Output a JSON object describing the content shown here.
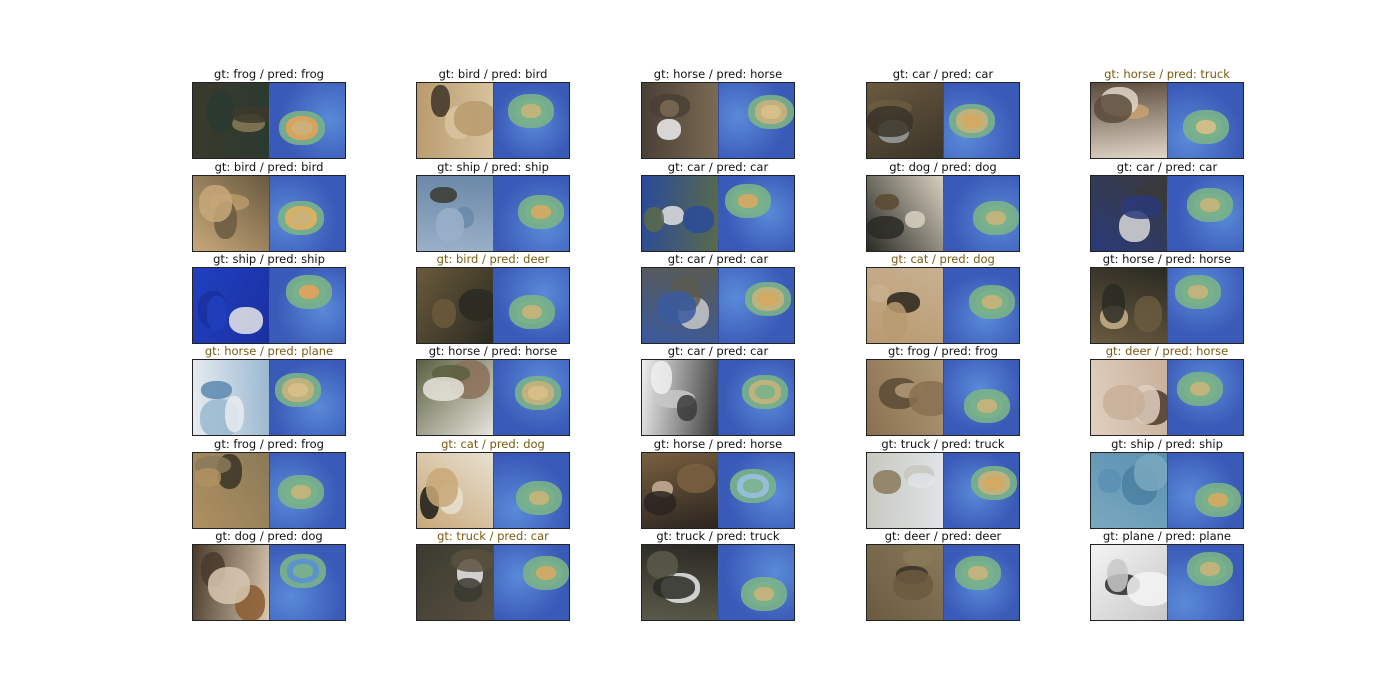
{
  "figure": {
    "cells": [
      {
        "gt": "frog",
        "pred": "frog",
        "caption": "gt: frog / pred: frog",
        "correct": true,
        "img_colors": [
          "#3b3a2c",
          "#8a7a58",
          "#2a3a30"
        ],
        "cam_hot": [
          "#c9b27a",
          "#e4a25a"
        ]
      },
      {
        "gt": "bird",
        "pred": "bird",
        "caption": "gt: bird / pred: bird",
        "correct": true,
        "img_colors": [
          "#b99a6d",
          "#3d3428",
          "#d8c4a0"
        ],
        "cam_hot": [
          "#c9b27a",
          "#7ab38a"
        ]
      },
      {
        "gt": "horse",
        "pred": "horse",
        "caption": "gt: horse / pred: horse",
        "correct": true,
        "img_colors": [
          "#7a6a54",
          "#efefef",
          "#4a4035"
        ],
        "cam_hot": [
          "#d9bf8a",
          "#c9b27a"
        ]
      },
      {
        "gt": "car",
        "pred": "car",
        "caption": "gt: car / pred: car",
        "correct": true,
        "img_colors": [
          "#3b3428",
          "#9aa0a0",
          "#6b5a40"
        ],
        "cam_hot": [
          "#d6a860",
          "#c9b27a"
        ]
      },
      {
        "gt": "horse",
        "pred": "truck",
        "caption": "gt: horse / pred: truck",
        "correct": false,
        "img_colors": [
          "#5a4a3a",
          "#c8a070",
          "#e0d6c8"
        ],
        "cam_hot": [
          "#d9bf8a",
          "#7ab38a"
        ]
      },
      {
        "gt": "bird",
        "pred": "bird",
        "caption": "gt: bird / pred: bird",
        "correct": true,
        "img_colors": [
          "#c8a87a",
          "#b89a68",
          "#6a5a40"
        ],
        "cam_hot": [
          "#c9b27a",
          "#e0b060"
        ]
      },
      {
        "gt": "ship",
        "pred": "ship",
        "caption": "gt: ship / pred: ship",
        "correct": true,
        "img_colors": [
          "#9ab0c8",
          "#3a3a30",
          "#6a88a8"
        ],
        "cam_hot": [
          "#d6a860",
          "#7ab38a"
        ]
      },
      {
        "gt": "car",
        "pred": "car",
        "caption": "gt: car / pred: car",
        "correct": true,
        "img_colors": [
          "#2a4a9a",
          "#e0e0e0",
          "#5a6a4a"
        ],
        "cam_hot": [
          "#d6a860",
          "#7ab38a"
        ]
      },
      {
        "gt": "dog",
        "pred": "dog",
        "caption": "gt: dog / pred: dog",
        "correct": true,
        "img_colors": [
          "#d8d0c0",
          "#5a4a30",
          "#2a2a24"
        ],
        "cam_hot": [
          "#c9b27a",
          "#7ab38a"
        ]
      },
      {
        "gt": "car",
        "pred": "car",
        "caption": "gt: car / pred: car",
        "correct": true,
        "img_colors": [
          "#2a3a7a",
          "#d8d8d8",
          "#3a3a3a"
        ],
        "cam_hot": [
          "#c9b27a",
          "#7ab38a"
        ]
      },
      {
        "gt": "ship",
        "pred": "ship",
        "caption": "gt: ship / pred: ship",
        "correct": true,
        "img_colors": [
          "#2040c0",
          "#e8e8e8",
          "#1a30a0"
        ],
        "cam_hot": [
          "#e4a25a",
          "#7ab38a"
        ]
      },
      {
        "gt": "bird",
        "pred": "deer",
        "caption": "gt: bird / pred: deer",
        "correct": false,
        "img_colors": [
          "#2a2a22",
          "#3a3a2a",
          "#6a5a3a"
        ],
        "cam_hot": [
          "#c9b27a",
          "#7ab38a"
        ]
      },
      {
        "gt": "car",
        "pred": "car",
        "caption": "gt: car / pred: car",
        "correct": true,
        "img_colors": [
          "#3a5aa0",
          "#c8c8c8",
          "#5a5a50"
        ],
        "cam_hot": [
          "#d6a860",
          "#c9b27a"
        ]
      },
      {
        "gt": "cat",
        "pred": "dog",
        "caption": "gt: cat / pred: dog",
        "correct": false,
        "img_colors": [
          "#b89a70",
          "#2a241c",
          "#c8b090"
        ],
        "cam_hot": [
          "#c9b27a",
          "#7ab38a"
        ]
      },
      {
        "gt": "horse",
        "pred": "horse",
        "caption": "gt: horse / pred: horse",
        "correct": true,
        "img_colors": [
          "#6a5a40",
          "#c8b08a",
          "#2a2a22"
        ],
        "cam_hot": [
          "#c9b27a",
          "#7ab38a"
        ]
      },
      {
        "gt": "horse",
        "pred": "plane",
        "caption": "gt: horse / pred: plane",
        "correct": false,
        "img_colors": [
          "#e8ecf0",
          "#5a88b0",
          "#9ab8d0"
        ],
        "cam_hot": [
          "#d9bf8a",
          "#c9b27a"
        ]
      },
      {
        "gt": "horse",
        "pred": "horse",
        "caption": "gt: horse / pred: horse",
        "correct": true,
        "img_colors": [
          "#e8e4dc",
          "#8a7058",
          "#5a6040"
        ],
        "cam_hot": [
          "#d9bf8a",
          "#c9b27a"
        ]
      },
      {
        "gt": "car",
        "pred": "car",
        "caption": "gt: car / pred: car",
        "correct": true,
        "img_colors": [
          "#f0f0f0",
          "#c8c8c8",
          "#3a3a3a"
        ],
        "cam_hot": [
          "#7ab38a",
          "#c9b27a"
        ]
      },
      {
        "gt": "frog",
        "pred": "frog",
        "caption": "gt: frog / pred: frog",
        "correct": true,
        "img_colors": [
          "#8a7050",
          "#5a4a34",
          "#b09a78"
        ],
        "cam_hot": [
          "#c9b27a",
          "#7ab38a"
        ]
      },
      {
        "gt": "deer",
        "pred": "horse",
        "caption": "gt: deer / pred: horse",
        "correct": false,
        "img_colors": [
          "#c8b09a",
          "#4a3a2a",
          "#e0d0c0"
        ],
        "cam_hot": [
          "#c9b27a",
          "#7ab38a"
        ]
      },
      {
        "gt": "frog",
        "pred": "frog",
        "caption": "gt: frog / pred: frog",
        "correct": true,
        "img_colors": [
          "#b09060",
          "#3a3424",
          "#8a7a58"
        ],
        "cam_hot": [
          "#c9b27a",
          "#7ab38a"
        ]
      },
      {
        "gt": "cat",
        "pred": "dog",
        "caption": "gt: cat / pred: dog",
        "correct": false,
        "img_colors": [
          "#c8a878",
          "#1a1a18",
          "#e8e0d0"
        ],
        "cam_hot": [
          "#c9b27a",
          "#7ab38a"
        ]
      },
      {
        "gt": "horse",
        "pred": "horse",
        "caption": "gt: horse / pred: horse",
        "correct": true,
        "img_colors": [
          "#7a6040",
          "#c8b098",
          "#2a2420"
        ],
        "cam_hot": [
          "#7ab38a",
          "#9ac0e0"
        ]
      },
      {
        "gt": "truck",
        "pred": "truck",
        "caption": "gt: truck / pred: truck",
        "correct": true,
        "img_colors": [
          "#e0e4e8",
          "#8a7a5a",
          "#c8c8c0"
        ],
        "cam_hot": [
          "#d6a860",
          "#c9b27a"
        ]
      },
      {
        "gt": "ship",
        "pred": "ship",
        "caption": "gt: ship / pred: ship",
        "correct": true,
        "img_colors": [
          "#5a90b0",
          "#4a80a0",
          "#7aa8c0"
        ],
        "cam_hot": [
          "#d6a860",
          "#7ab38a"
        ]
      },
      {
        "gt": "dog",
        "pred": "dog",
        "caption": "gt: dog / pred: dog",
        "correct": true,
        "img_colors": [
          "#d8c8b0",
          "#8a5a30",
          "#4a3a2a"
        ],
        "cam_hot": [
          "#7ab38a",
          "#5a90d0"
        ]
      },
      {
        "gt": "truck",
        "pred": "car",
        "caption": "gt: truck / pred: car",
        "correct": false,
        "img_colors": [
          "#5a5040",
          "#e8e8e8",
          "#3a3a30"
        ],
        "cam_hot": [
          "#d6a860",
          "#7ab38a"
        ]
      },
      {
        "gt": "truck",
        "pred": "truck",
        "caption": "gt: truck / pred: truck",
        "correct": true,
        "img_colors": [
          "#2a2a24",
          "#e8e8e8",
          "#5a5a4a"
        ],
        "cam_hot": [
          "#c9b27a",
          "#7ab38a"
        ]
      },
      {
        "gt": "deer",
        "pred": "deer",
        "caption": "gt: deer / pred: deer",
        "correct": true,
        "img_colors": [
          "#6a5a40",
          "#3a3024",
          "#8a7a5a"
        ],
        "cam_hot": [
          "#c9b27a",
          "#7ab38a"
        ]
      },
      {
        "gt": "plane",
        "pred": "plane",
        "caption": "gt: plane / pred: plane",
        "correct": true,
        "img_colors": [
          "#f4f4f4",
          "#2a2a2a",
          "#c8c8c8"
        ],
        "cam_hot": [
          "#c9b27a",
          "#7ab38a"
        ]
      }
    ]
  }
}
